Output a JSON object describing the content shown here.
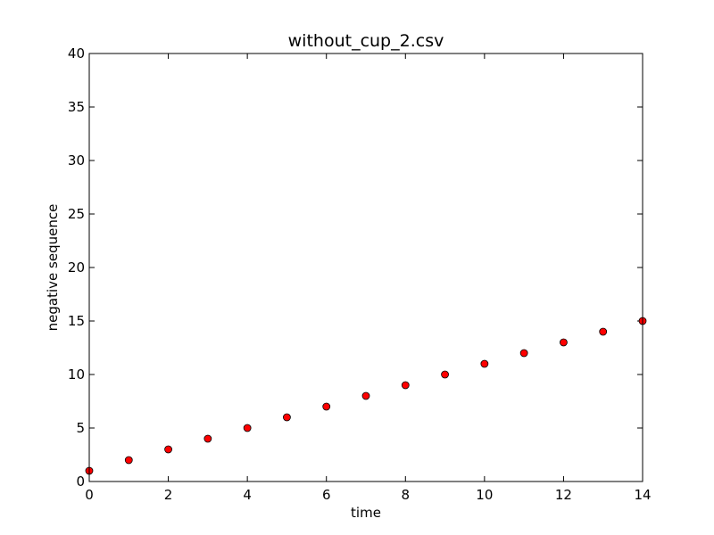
{
  "chart_data": {
    "type": "scatter",
    "title": "without_cup_2.csv",
    "xlabel": "time",
    "ylabel": "negative sequence",
    "xlim": [
      0,
      14
    ],
    "ylim": [
      0,
      40
    ],
    "xticks": [
      0,
      2,
      4,
      6,
      8,
      10,
      12,
      14
    ],
    "yticks": [
      0,
      5,
      10,
      15,
      20,
      25,
      30,
      35,
      40
    ],
    "grid": false,
    "marker_color": "#ff0000",
    "marker_edge_color": "#000000",
    "series": [
      {
        "x": [
          0,
          1,
          2,
          3,
          4,
          5,
          6,
          7,
          8,
          9,
          10,
          11,
          12,
          13,
          14
        ],
        "y": [
          1,
          2,
          3,
          4,
          5,
          6,
          7,
          8,
          9,
          10,
          11,
          12,
          13,
          14,
          15
        ]
      }
    ]
  }
}
